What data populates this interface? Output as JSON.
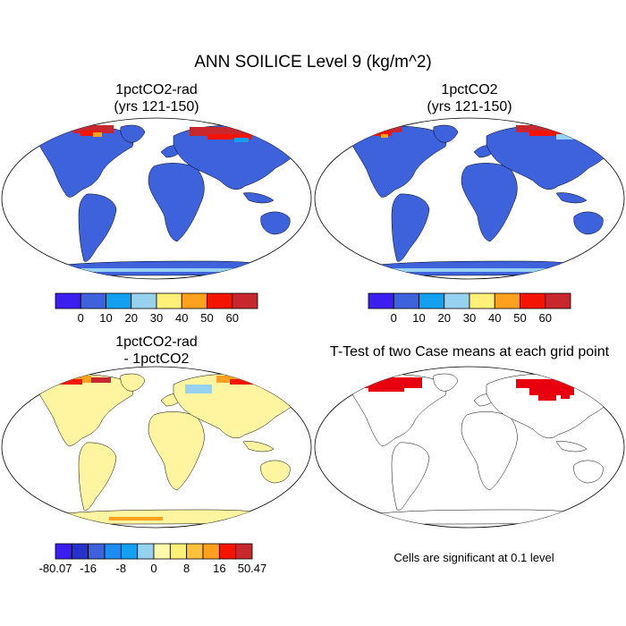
{
  "title": "ANN SOILICE Level 9 (kg/m^2)",
  "chart_data": [
    {
      "type": "heatmap",
      "panel": "top-left",
      "title_line1": "1pctCO2-rad",
      "title_line2": "(yrs 121-150)",
      "projection": "Robinson world map",
      "colorbar": {
        "colors": [
          "#3c1ef0",
          "#3e61dc",
          "#14a0f0",
          "#96d2f0",
          "#fff078",
          "#ffa01e",
          "#f51400",
          "#c8282d"
        ],
        "tick_labels": [
          "0",
          "10",
          "20",
          "30",
          "40",
          "50",
          "60"
        ]
      }
    },
    {
      "type": "heatmap",
      "panel": "top-right",
      "title_line1": "1pctCO2",
      "title_line2": "(yrs 121-150)",
      "projection": "Robinson world map",
      "colorbar": {
        "colors": [
          "#3c1ef0",
          "#3e61dc",
          "#14a0f0",
          "#96d2f0",
          "#fff078",
          "#ffa01e",
          "#f51400",
          "#c8282d"
        ],
        "tick_labels": [
          "0",
          "10",
          "20",
          "30",
          "40",
          "50",
          "60"
        ]
      }
    },
    {
      "type": "heatmap",
      "panel": "bottom-left",
      "title_line1": "1pctCO2-rad",
      "title_line2": "- 1pctCO2",
      "projection": "Robinson world map",
      "colorbar": {
        "colors": [
          "#3c1ef0",
          "#2832c8",
          "#3e61dc",
          "#1e8cf0",
          "#14a0f0",
          "#96d2f0",
          "#fffaaa",
          "#fff078",
          "#ffc03c",
          "#ffa01e",
          "#f51400",
          "#c8282d"
        ],
        "tick_labels": [
          "-80.07",
          "-16",
          "-8",
          "0",
          "8",
          "16",
          "50.47"
        ]
      }
    },
    {
      "type": "heatmap",
      "panel": "bottom-right",
      "title_line1": "T-Test of two Case means at each grid point",
      "projection": "Robinson world map",
      "note": "Cells are significant at 0.1 level"
    }
  ]
}
